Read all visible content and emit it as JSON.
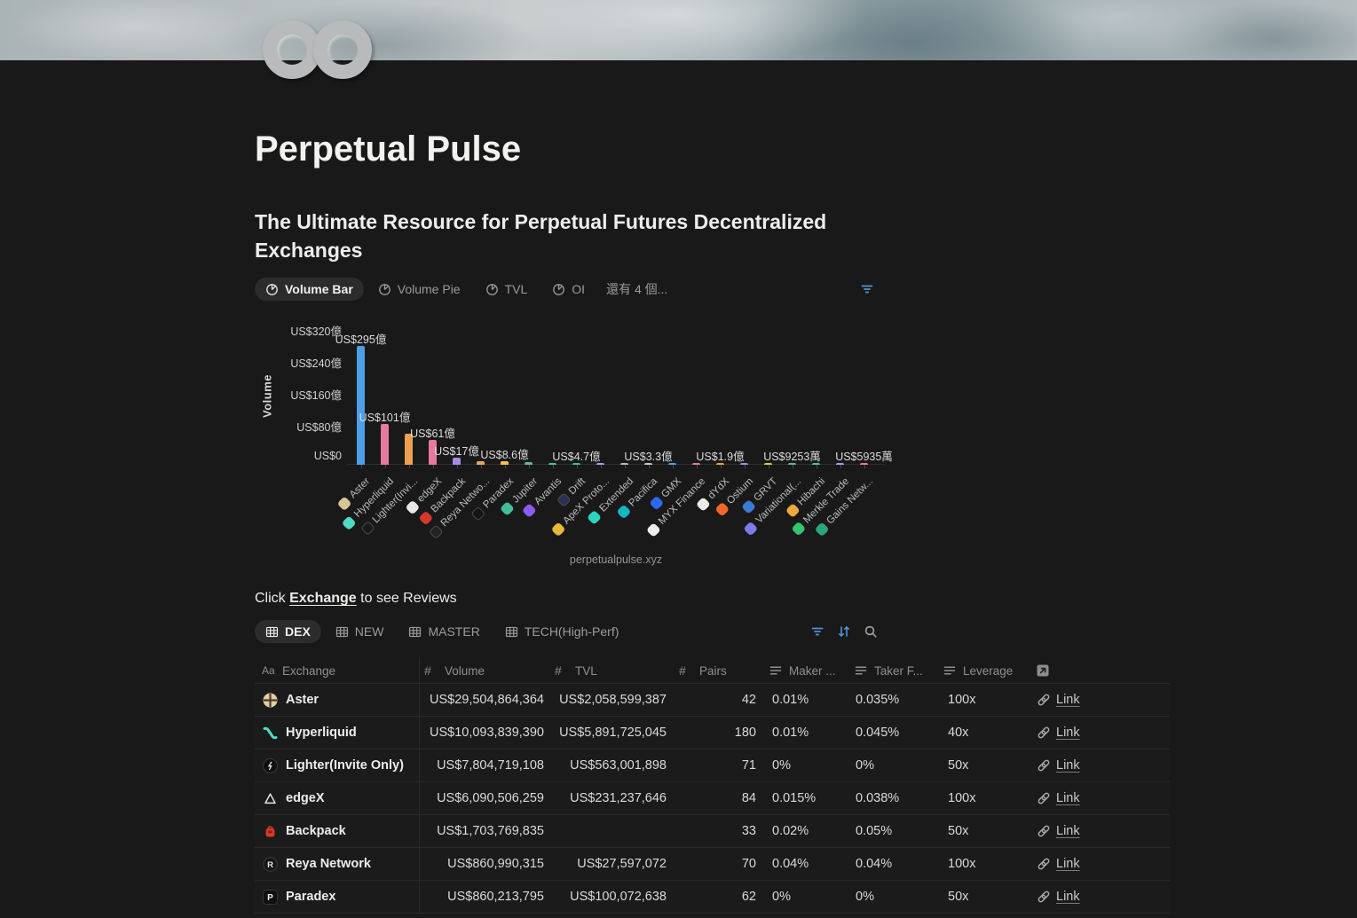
{
  "page": {
    "title": "Perpetual Pulse",
    "subtitle": "The Ultimate Resource for Perpetual Futures Decentralized Exchanges"
  },
  "chart_tabs": {
    "tabs": [
      {
        "label": "Volume Bar",
        "active": true
      },
      {
        "label": "Volume Pie",
        "active": false
      },
      {
        "label": "TVL",
        "active": false
      },
      {
        "label": "OI",
        "active": false
      }
    ],
    "more_label": "還有 4 個..."
  },
  "chart_data": {
    "type": "bar",
    "title": "",
    "ylabel": "Volume",
    "xlabel": "",
    "footer": "perpetualpulse.xyz",
    "y_ticks": [
      "US$320億",
      "US$240億",
      "US$160億",
      "US$80億",
      "US$0"
    ],
    "ylim_yi": [
      0,
      320
    ],
    "unit_note": "values in 億 (100M) USD, estimated from labels and table",
    "categories": [
      "Aster",
      "Hyperliquid",
      "Lighter(Invi...",
      "edgeX",
      "Backpack",
      "Reya Netwo...",
      "Paradex",
      "Jupiter",
      "Avantis",
      "Drift",
      "ApeX Proto...",
      "Extended",
      "Pacifica",
      "GMX",
      "MYX Finance",
      "dYdX",
      "Ostium",
      "GRVT",
      "Variational(...",
      "Hibachi",
      "Merkle Trade",
      "Gains Netw..."
    ],
    "values_yi": [
      295,
      101,
      78,
      61,
      17,
      8.6,
      8.6,
      6.2,
      5.4,
      4.7,
      4.0,
      3.6,
      3.3,
      2.7,
      2.2,
      1.9,
      1.5,
      1.2,
      0.9253,
      0.75,
      0.65,
      0.5935
    ],
    "bar_labels": [
      {
        "i": 0,
        "t": "US$295億"
      },
      {
        "i": 1,
        "t": "US$101億"
      },
      {
        "i": 3,
        "t": "US$61億"
      },
      {
        "i": 4,
        "t": "US$17億"
      },
      {
        "i": 6,
        "t": "US$8.6億"
      },
      {
        "i": 9,
        "t": "US$4.7億"
      },
      {
        "i": 12,
        "t": "US$3.3億"
      },
      {
        "i": 15,
        "t": "US$1.9億"
      },
      {
        "i": 18,
        "t": "US$9253萬"
      },
      {
        "i": 21,
        "t": "US$5935萬"
      }
    ],
    "bar_colors": [
      "#4d9fe8",
      "#e8799f",
      "#efa04e",
      "#e8799f",
      "#a98be0",
      "#f0a45a",
      "#f2c14e",
      "#5bbd8b",
      "#45c4b0",
      "#3fbf9f",
      "#a6a0e8",
      "#d5adbb",
      "#c8c8d0",
      "#4d9fe8",
      "#e8799f",
      "#efa04e",
      "#a98be0",
      "#f2c14e",
      "#5bbd8b",
      "#45c4b0",
      "#a6a0e8",
      "#e8799f"
    ],
    "icon_colors": [
      "#d8c49a",
      "#4edcc4",
      "#1b1b1b",
      "#e8e8e8",
      "#d6382c",
      "#232323",
      "#141414",
      "#3fbf9a",
      "#8b5cf6",
      "#2a3158",
      "#e7b93c",
      "#2dd4bf",
      "#15b5c8",
      "#2d68f5",
      "#ececec",
      "#ececec",
      "#f2662d",
      "#3a7bd5",
      "#7c7cf0",
      "#f0a93c",
      "#35c46b",
      "#2ba57a"
    ],
    "legend": null,
    "grid": false
  },
  "table_section": {
    "caption": {
      "prefix": "Click ",
      "link": "Exchange",
      "suffix": " to see Reviews"
    },
    "tabs": [
      {
        "label": "DEX",
        "active": true
      },
      {
        "label": "NEW",
        "active": false
      },
      {
        "label": "MASTER",
        "active": false
      },
      {
        "label": "TECH(High-Perf)",
        "active": false
      }
    ],
    "columns": [
      {
        "icon": "aa",
        "label": "Exchange"
      },
      {
        "icon": "hash",
        "label": "Volume"
      },
      {
        "icon": "hash",
        "label": "TVL"
      },
      {
        "icon": "hash",
        "label": "Pairs"
      },
      {
        "icon": "lines",
        "label": "Maker ..."
      },
      {
        "icon": "lines",
        "label": "Taker F..."
      },
      {
        "icon": "lines",
        "label": "Leverage"
      },
      {
        "icon": "open",
        "label": ""
      }
    ],
    "rows": [
      {
        "icon": "aster",
        "name": "Aster",
        "volume": "US$29,504,864,364",
        "tvl": "US$2,058,599,387",
        "pairs": "42",
        "maker": "0.01%",
        "taker": "0.035%",
        "leverage": "100x",
        "link": "Link"
      },
      {
        "icon": "hyperliquid",
        "name": "Hyperliquid",
        "volume": "US$10,093,839,390",
        "tvl": "US$5,891,725,045",
        "pairs": "180",
        "maker": "0.01%",
        "taker": "0.045%",
        "leverage": "40x",
        "link": "Link"
      },
      {
        "icon": "lighter",
        "name": "Lighter(Invite Only)",
        "volume": "US$7,804,719,108",
        "tvl": "US$563,001,898",
        "pairs": "71",
        "maker": "0%",
        "taker": "0%",
        "leverage": "50x",
        "link": "Link"
      },
      {
        "icon": "edgex",
        "name": "edgeX",
        "volume": "US$6,090,506,259",
        "tvl": "US$231,237,646",
        "pairs": "84",
        "maker": "0.015%",
        "taker": "0.038%",
        "leverage": "100x",
        "link": "Link"
      },
      {
        "icon": "backpack",
        "name": "Backpack",
        "volume": "US$1,703,769,835",
        "tvl": "",
        "pairs": "33",
        "maker": "0.02%",
        "taker": "0.05%",
        "leverage": "50x",
        "link": "Link"
      },
      {
        "icon": "reya",
        "name": "Reya Network",
        "volume": "US$860,990,315",
        "tvl": "US$27,597,072",
        "pairs": "70",
        "maker": "0.04%",
        "taker": "0.04%",
        "leverage": "100x",
        "link": "Link"
      },
      {
        "icon": "paradex",
        "name": "Paradex",
        "volume": "US$860,213,795",
        "tvl": "US$100,072,638",
        "pairs": "62",
        "maker": "0%",
        "taker": "0%",
        "leverage": "50x",
        "link": "Link"
      }
    ]
  }
}
